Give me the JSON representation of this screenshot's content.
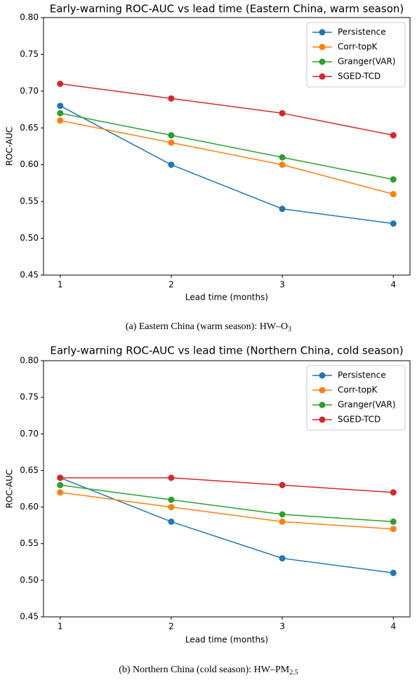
{
  "chart_data": [
    {
      "type": "line",
      "title": "Early-warning ROC-AUC vs lead time (Eastern China, warm season)",
      "x_label": "Lead time (months)",
      "y_label": "ROC-AUC",
      "x": [
        1,
        2,
        3,
        4
      ],
      "xlim": [
        0.85,
        4.15
      ],
      "xticks": [
        1,
        2,
        3,
        4
      ],
      "ylim": [
        0.45,
        0.8
      ],
      "yticks": [
        0.45,
        {
          "value": 0.5,
          "label": "0.50"
        },
        0.55,
        {
          "value": 0.6,
          "label": "0.60"
        },
        0.65,
        {
          "value": 0.7,
          "label": "0.70"
        },
        0.75,
        {
          "value": 0.8,
          "label": "0.80"
        }
      ],
      "legend": "upper right",
      "series": [
        {
          "name": "Persistence",
          "color": "#1f77b4",
          "values": [
            0.68,
            0.6,
            0.54,
            0.52
          ]
        },
        {
          "name": "Corr-topK",
          "color": "#ff7f0e",
          "values": [
            0.66,
            0.63,
            0.6,
            0.56
          ]
        },
        {
          "name": "Granger(VAR)",
          "color": "#2ca02c",
          "values": [
            0.67,
            0.64,
            0.61,
            0.58
          ]
        },
        {
          "name": "SGED-TCD",
          "color": "#d62728",
          "values": [
            0.71,
            0.69,
            0.67,
            0.64
          ]
        }
      ],
      "caption": {
        "text": "(a) Eastern China (warm season): HW–O",
        "subscript": "3"
      }
    },
    {
      "type": "line",
      "title": "Early-warning ROC-AUC vs lead time (Northern China, cold season)",
      "x_label": "Lead time (months)",
      "y_label": "ROC-AUC",
      "x": [
        1,
        2,
        3,
        4
      ],
      "xlim": [
        0.85,
        4.15
      ],
      "xticks": [
        1,
        2,
        3,
        4
      ],
      "ylim": [
        0.45,
        0.8
      ],
      "yticks": [
        0.45,
        {
          "value": 0.5,
          "label": "0.50"
        },
        0.55,
        {
          "value": 0.6,
          "label": "0.60"
        },
        0.65,
        {
          "value": 0.7,
          "label": "0.70"
        },
        0.75,
        {
          "value": 0.8,
          "label": "0.80"
        }
      ],
      "legend": "upper right",
      "series": [
        {
          "name": "Persistence",
          "color": "#1f77b4",
          "values": [
            0.64,
            0.58,
            0.53,
            0.51
          ]
        },
        {
          "name": "Corr-topK",
          "color": "#ff7f0e",
          "values": [
            0.62,
            0.6,
            0.58,
            0.57
          ]
        },
        {
          "name": "Granger(VAR)",
          "color": "#2ca02c",
          "values": [
            0.63,
            0.61,
            0.59,
            0.58
          ]
        },
        {
          "name": "SGED-TCD",
          "color": "#d62728",
          "values": [
            0.64,
            0.64,
            0.63,
            0.62
          ]
        }
      ],
      "caption": {
        "text": "(b) Northern China (cold season): HW–PM",
        "subscript": "2.5"
      }
    }
  ]
}
